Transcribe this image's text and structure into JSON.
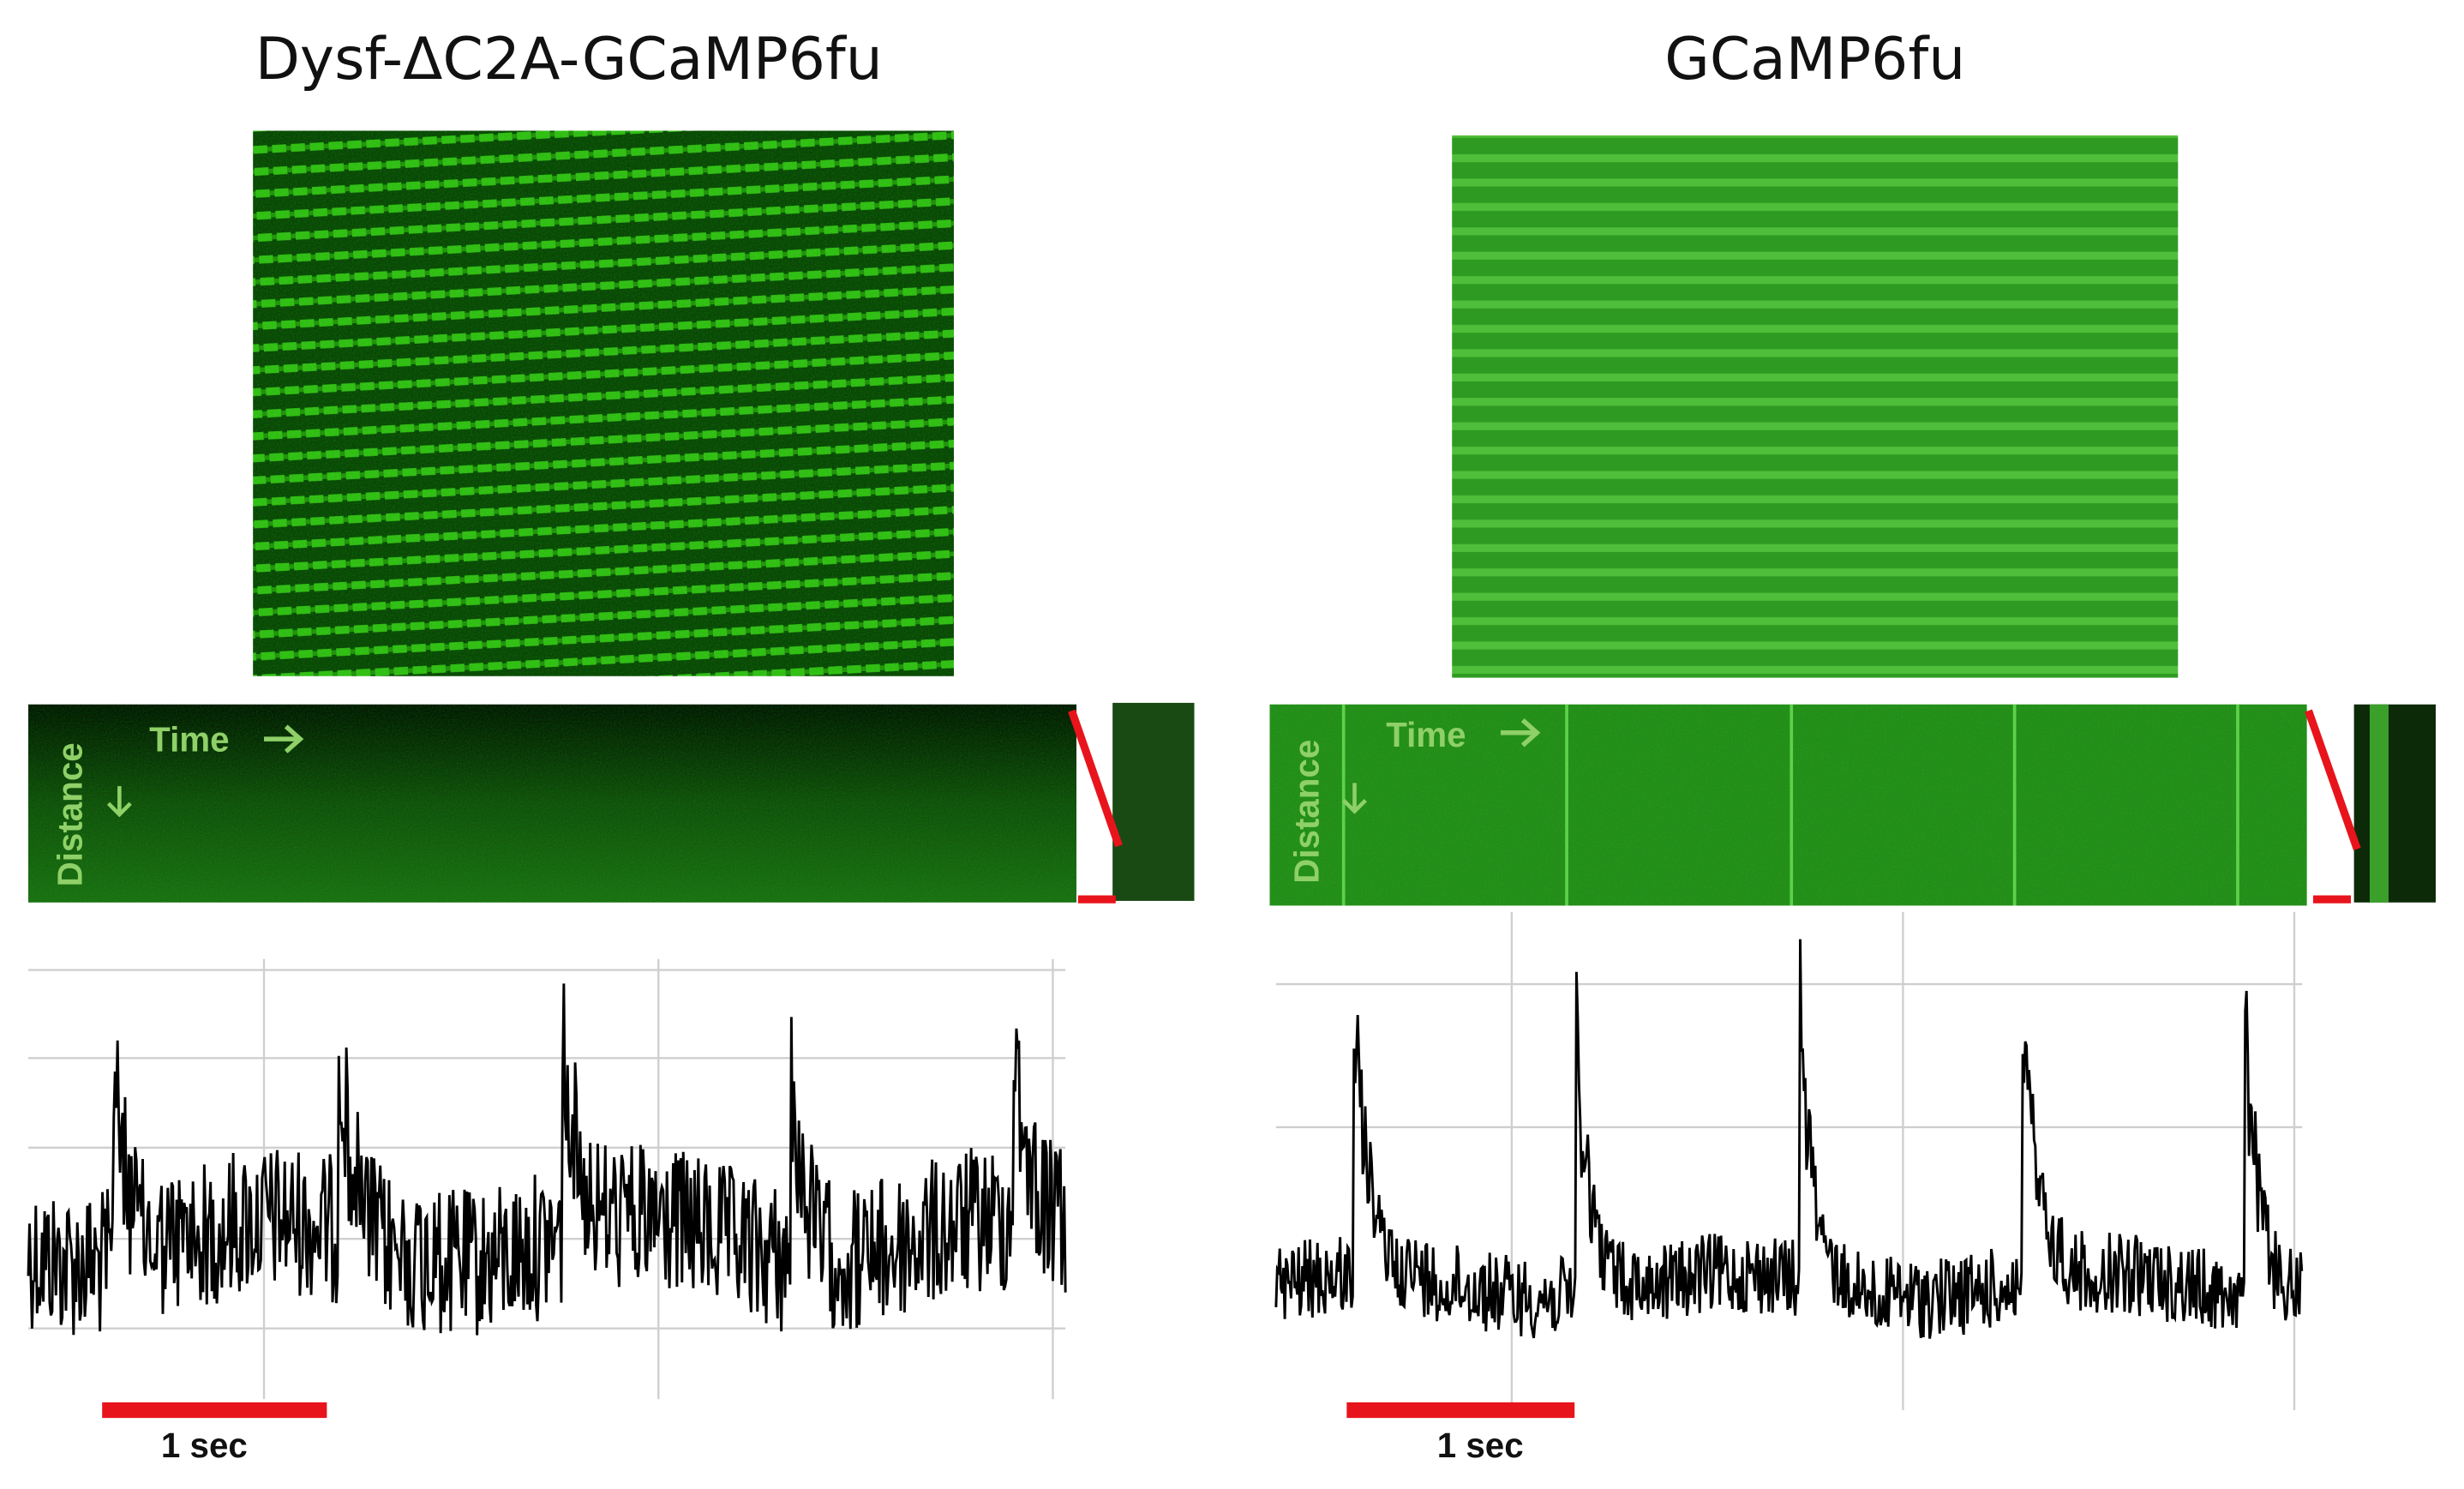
{
  "panels": [
    {
      "title": "Dysf-ΔC2A-GCaMP6fu",
      "time_label": "Time",
      "distance_label": "Distance",
      "scale_label": "1 sec"
    },
    {
      "title": "GCaMP6fu",
      "time_label": "Time",
      "distance_label": "Distance",
      "scale_label": "1 sec"
    }
  ]
}
